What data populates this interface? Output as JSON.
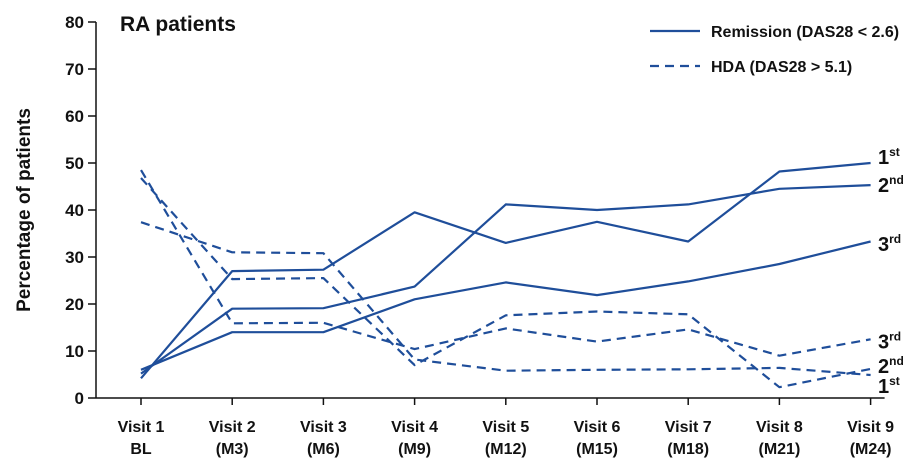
{
  "chart_data": {
    "type": "line",
    "title": "RA patients",
    "ylabel": "Percentage of patients",
    "xlabel": "",
    "ylim": [
      0,
      80
    ],
    "yticks": [
      "0",
      "10",
      "20",
      "30",
      "40",
      "50",
      "60",
      "70",
      "80"
    ],
    "categories": [
      [
        "Visit 1",
        "BL"
      ],
      [
        "Visit 2",
        "(M3)"
      ],
      [
        "Visit 3",
        "(M6)"
      ],
      [
        "Visit 4",
        "(M9)"
      ],
      [
        "Visit 5",
        "(M12)"
      ],
      [
        "Visit 6",
        "(M15)"
      ],
      [
        "Visit 7",
        "(M18)"
      ],
      [
        "Visit 8",
        "(M21)"
      ],
      [
        "Visit 9",
        "(M24)"
      ]
    ],
    "legend": {
      "placement": "top-right",
      "entries": [
        {
          "label": "Remission (DAS28 < 2.6)",
          "style": "solid"
        },
        {
          "label": "HDA (DAS28 > 5.1)",
          "style": "dashed"
        }
      ]
    },
    "series": [
      {
        "group": "remission",
        "rank": "1st",
        "dashed": false,
        "values": [
          4.2,
          27.0,
          27.3,
          39.5,
          33.0,
          37.5,
          33.3,
          48.2,
          50.0
        ]
      },
      {
        "group": "remission",
        "rank": "2nd",
        "dashed": false,
        "values": [
          5.2,
          19.0,
          19.1,
          23.7,
          41.2,
          40.0,
          41.2,
          44.5,
          45.3
        ]
      },
      {
        "group": "remission",
        "rank": "3rd",
        "dashed": false,
        "values": [
          6.0,
          14.0,
          14.0,
          21.0,
          24.6,
          21.9,
          24.8,
          28.5,
          33.3
        ]
      },
      {
        "group": "hda",
        "rank": "1st",
        "dashed": true,
        "values": [
          37.4,
          31.0,
          30.8,
          8.2,
          5.8,
          6.0,
          6.1,
          6.4,
          4.9
        ]
      },
      {
        "group": "hda",
        "rank": "2nd",
        "dashed": true,
        "values": [
          46.8,
          25.3,
          25.5,
          7.0,
          17.6,
          18.4,
          17.8,
          2.3,
          6.2
        ]
      },
      {
        "group": "hda",
        "rank": "3rd",
        "dashed": true,
        "values": [
          48.5,
          15.9,
          16.0,
          10.4,
          14.8,
          12.0,
          14.6,
          9.0,
          12.5
        ]
      }
    ],
    "end_labels": {
      "remission": [
        {
          "base": "1",
          "sup": "st",
          "value": 51.5
        },
        {
          "base": "2",
          "sup": "nd",
          "value": 45.5
        },
        {
          "base": "3",
          "sup": "rd",
          "value": 33.0
        }
      ],
      "hda": [
        {
          "base": "3",
          "sup": "rd",
          "value": 12.2
        },
        {
          "base": "2",
          "sup": "nd",
          "value": 7.0
        },
        {
          "base": "1",
          "sup": "st",
          "value": 2.8
        }
      ]
    },
    "color": "#1f4e9a",
    "grid": false
  }
}
